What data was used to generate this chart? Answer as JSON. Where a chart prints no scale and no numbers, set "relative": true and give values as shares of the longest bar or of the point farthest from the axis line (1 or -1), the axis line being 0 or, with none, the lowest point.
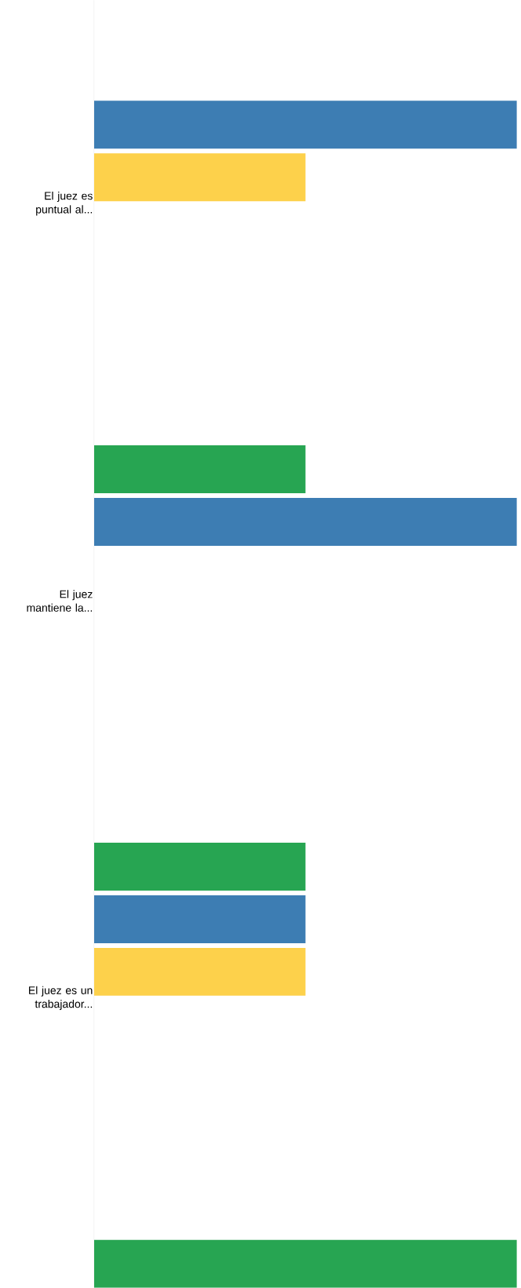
{
  "chart_data": {
    "type": "bar",
    "orientation": "horizontal",
    "relative": true,
    "categories": [
      "El juez es puntual al...",
      "El juez mantiene la...",
      "El juez es un trabajador...",
      null
    ],
    "series": [
      {
        "color": "#27a552",
        "values": [
          0,
          0.5,
          0.5,
          1
        ]
      },
      {
        "color": "#3d7db3",
        "values": [
          1,
          1,
          0.5,
          null
        ]
      },
      {
        "color": "#fdd14b",
        "values": [
          0.5,
          0,
          0.5,
          null
        ]
      }
    ]
  }
}
